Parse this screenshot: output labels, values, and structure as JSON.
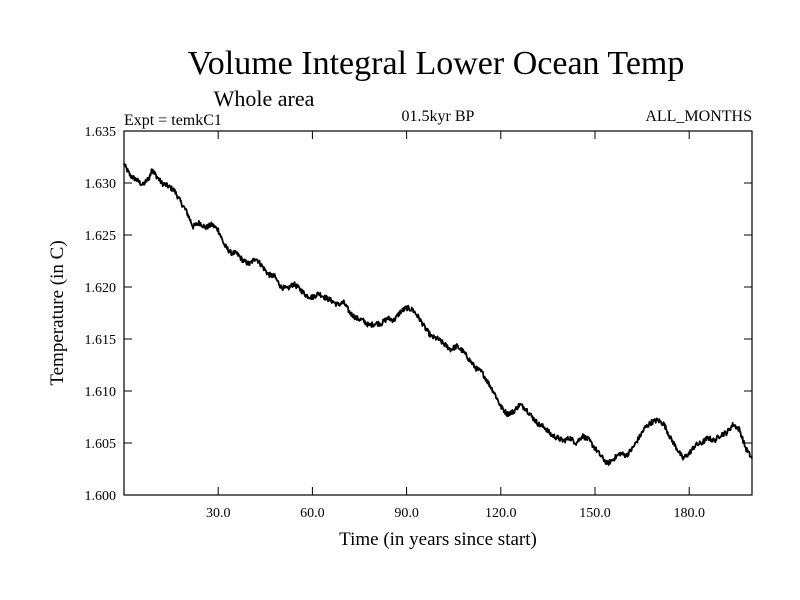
{
  "chart_data": {
    "type": "line",
    "title": "Volume Integral Lower Ocean Temp",
    "subtitle": "Whole area",
    "experiment_label": "Expt = temkC1",
    "period_label": "01.5kyr BP",
    "months_label": "ALL_MONTHS",
    "xlabel": "Time (in years since start)",
    "ylabel": "Temperature (in C)",
    "xlim": [
      0,
      200
    ],
    "ylim": [
      1.6,
      1.635
    ],
    "xticks": [
      30,
      60,
      90,
      120,
      150,
      180
    ],
    "xtick_labels": [
      "30.0",
      "60.0",
      "90.0",
      "120.0",
      "150.0",
      "180.0"
    ],
    "yticks": [
      1.6,
      1.605,
      1.61,
      1.615,
      1.62,
      1.625,
      1.63,
      1.635
    ],
    "ytick_labels": [
      "1.600",
      "1.605",
      "1.610",
      "1.615",
      "1.620",
      "1.625",
      "1.630",
      "1.635"
    ],
    "grid": false,
    "line_color": "#000000",
    "series": [
      {
        "name": "Volume integral lower ocean temperature",
        "x": [
          0,
          2,
          4,
          6,
          8,
          9,
          10,
          12,
          14,
          16,
          18,
          20,
          22,
          24,
          26,
          28,
          30,
          32,
          34,
          36,
          38,
          40,
          42,
          44,
          46,
          48,
          50,
          52,
          54,
          56,
          58,
          60,
          62,
          64,
          66,
          68,
          70,
          72,
          74,
          76,
          78,
          80,
          82,
          84,
          86,
          88,
          90,
          92,
          94,
          96,
          98,
          100,
          102,
          104,
          106,
          108,
          110,
          112,
          114,
          116,
          118,
          120,
          122,
          124,
          126,
          128,
          130,
          132,
          134,
          136,
          138,
          140,
          142,
          144,
          146,
          148,
          150,
          152,
          154,
          156,
          158,
          160,
          162,
          164,
          166,
          168,
          170,
          172,
          174,
          176,
          178,
          180,
          182,
          184,
          186,
          188,
          190,
          192,
          194,
          196,
          198,
          200
        ],
        "values": [
          1.6318,
          1.6307,
          1.6303,
          1.6298,
          1.6305,
          1.6313,
          1.6308,
          1.63,
          1.6297,
          1.6293,
          1.6282,
          1.6272,
          1.6258,
          1.6262,
          1.6257,
          1.626,
          1.6255,
          1.624,
          1.6233,
          1.6232,
          1.6225,
          1.6222,
          1.6228,
          1.622,
          1.6212,
          1.621,
          1.62,
          1.6198,
          1.6203,
          1.6198,
          1.6192,
          1.619,
          1.6194,
          1.619,
          1.6187,
          1.6183,
          1.6185,
          1.6175,
          1.617,
          1.6168,
          1.6163,
          1.6165,
          1.6165,
          1.617,
          1.6168,
          1.6176,
          1.618,
          1.6178,
          1.617,
          1.616,
          1.6152,
          1.615,
          1.6145,
          1.614,
          1.6143,
          1.6138,
          1.613,
          1.6122,
          1.6118,
          1.6108,
          1.6098,
          1.6085,
          1.6078,
          1.608,
          1.6087,
          1.6083,
          1.6075,
          1.6068,
          1.6065,
          1.6058,
          1.6055,
          1.6052,
          1.6055,
          1.605,
          1.6057,
          1.6053,
          1.6045,
          1.6037,
          1.603,
          1.6035,
          1.604,
          1.6038,
          1.6045,
          1.6055,
          1.6065,
          1.607,
          1.6072,
          1.6068,
          1.6055,
          1.6045,
          1.6035,
          1.604,
          1.6048,
          1.605,
          1.6055,
          1.6052,
          1.6058,
          1.606,
          1.6068,
          1.6063,
          1.6045,
          1.6035
        ]
      }
    ]
  }
}
